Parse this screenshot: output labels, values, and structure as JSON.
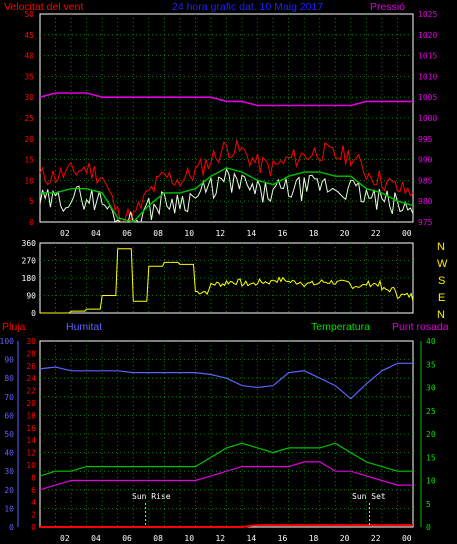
{
  "header": {
    "wind_speed_label": "Velocitat del vent",
    "title": "24 hora grafic dat. 10 Maig 2017",
    "pressure_label": "Pressió"
  },
  "lower_header": {
    "rain_label": "Pluja",
    "humidity_label": "Humitat",
    "temperature_label": "Temperatura",
    "dewpoint_label": "Punt rosada"
  },
  "annotations": {
    "sunrise": "Sun Rise",
    "sunset": "Sun Set"
  },
  "direction_labels": [
    "N",
    "W",
    "S",
    "E",
    "N"
  ],
  "colors": {
    "wind_gust": "#ff0000",
    "wind_avg": "#00c000",
    "wind_speed": "#e8ffe0",
    "pressure": "#e000e0",
    "direction": "#ffff00",
    "humidity": "#6060ff",
    "temperature": "#00c000",
    "dewpoint": "#e000e0",
    "rain": "#ff0000",
    "grid": "#00a000"
  },
  "chart_data": [
    {
      "type": "line",
      "panel": "wind_pressure",
      "title": "24 hora grafic dat. 10 Maig 2017",
      "ylabel": "Velocitat del vent",
      "y2label": "Pressió",
      "ylim": [
        0,
        50
      ],
      "y2lim": [
        975,
        1025
      ],
      "x_ticks": [
        "02",
        "04",
        "06",
        "08",
        "10",
        "12",
        "14",
        "16",
        "18",
        "20",
        "22",
        "00"
      ],
      "x_hours": [
        0,
        1,
        2,
        3,
        4,
        5,
        6,
        7,
        8,
        9,
        10,
        11,
        12,
        13,
        14,
        15,
        16,
        17,
        18,
        19,
        20,
        21,
        22,
        23,
        24
      ],
      "grid": true,
      "series": [
        {
          "name": "Velocitat del vent",
          "axis": "left",
          "values": [
            11,
            11,
            12,
            13,
            11,
            2,
            1,
            7,
            11,
            10,
            12,
            15,
            18,
            17,
            14,
            13,
            15,
            16,
            17,
            16,
            16,
            12,
            10,
            8,
            7
          ]
        },
        {
          "name": "avg",
          "axis": "left",
          "values": [
            7,
            7,
            8,
            8,
            7,
            1,
            0,
            4,
            7,
            7,
            8,
            11,
            13,
            12,
            10,
            9,
            11,
            12,
            12,
            11,
            11,
            8,
            7,
            5,
            4
          ]
        },
        {
          "name": "speed",
          "axis": "left",
          "values": [
            5,
            5,
            6,
            6,
            5,
            0,
            0,
            3,
            5,
            5,
            6,
            8,
            10,
            9,
            7,
            7,
            8,
            8,
            9,
            8,
            8,
            6,
            5,
            4,
            2
          ]
        },
        {
          "name": "Pressió",
          "axis": "right",
          "values": [
            1005,
            1006,
            1006,
            1006,
            1005,
            1005,
            1005,
            1005,
            1005,
            1005,
            1005,
            1005,
            1004,
            1004,
            1003,
            1003,
            1003,
            1003,
            1003,
            1003,
            1003,
            1004,
            1004,
            1004,
            1004
          ]
        }
      ]
    },
    {
      "type": "line",
      "panel": "wind_direction",
      "ylim": [
        0,
        360
      ],
      "y_ticks": [
        0,
        90,
        180,
        270,
        360
      ],
      "grid": true,
      "series": [
        {
          "name": "direction",
          "values": [
            0,
            0,
            10,
            20,
            90,
            330,
            60,
            240,
            260,
            250,
            110,
            150,
            160,
            150,
            160,
            170,
            160,
            150,
            160,
            155,
            140,
            150,
            120,
            90,
            60
          ]
        }
      ]
    },
    {
      "type": "line",
      "panel": "humidity_temperature",
      "y_axes": {
        "Pluja": [
          0,
          30
        ],
        "Humitat": [
          0,
          100
        ],
        "Temperatura": [
          0,
          40
        ],
        "Punt rosada": [
          0,
          40
        ]
      },
      "x_ticks": [
        "02",
        "04",
        "06",
        "08",
        "10",
        "12",
        "14",
        "16",
        "18",
        "20",
        "22",
        "00"
      ],
      "grid": true,
      "series": [
        {
          "name": "Humitat",
          "axis": "Humitat",
          "values": [
            85,
            86,
            84,
            84,
            84,
            84,
            83,
            83,
            83,
            83,
            83,
            82,
            80,
            76,
            75,
            76,
            83,
            84,
            80,
            76,
            69,
            77,
            84,
            88,
            88
          ]
        },
        {
          "name": "Temperatura",
          "axis": "Temperatura",
          "values": [
            11,
            12,
            12,
            13,
            13,
            13,
            13,
            13,
            13,
            13,
            13,
            15,
            17,
            18,
            17,
            16,
            17,
            17,
            17,
            18,
            16,
            14,
            13,
            12,
            12
          ]
        },
        {
          "name": "Punt rosada",
          "axis": "Punt rosada",
          "values": [
            8,
            9,
            10,
            10,
            10,
            10,
            10,
            10,
            10,
            10,
            10,
            11,
            12,
            13,
            13,
            13,
            13,
            14,
            14,
            12,
            12,
            11,
            10,
            9,
            9
          ]
        },
        {
          "name": "Pluja",
          "axis": "Pluja",
          "values": [
            0,
            0,
            0,
            0,
            0,
            0,
            0,
            0,
            0,
            0,
            0,
            0,
            0,
            0,
            0.3,
            0.3,
            0.3,
            0.3,
            0.3,
            0.3,
            0.3,
            0.3,
            0.3,
            0.3,
            0.3
          ]
        }
      ]
    }
  ]
}
